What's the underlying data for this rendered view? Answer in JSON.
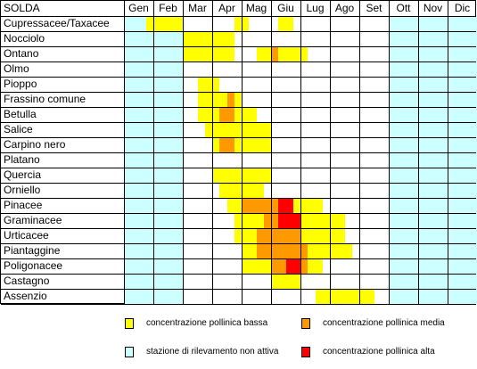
{
  "station": "SOLDA",
  "months": [
    "Gen",
    "Feb",
    "Mar",
    "Apr",
    "Mag",
    "Giu",
    "Lug",
    "Ago",
    "Set",
    "Ott",
    "Nov",
    "Dic"
  ],
  "colors": {
    "inactive": "#ccffff",
    "low": "#ffff00",
    "medium": "#ff9900",
    "high": "#ff0000",
    "empty": "#ffffff"
  },
  "rows": [
    {
      "label": "Cupressacee/Taxacee",
      "levels": "iiiLLLLLiiiiiiiLLiiiiLLiiiiiiiiiiiiiiiiiiiiiiiiii"
    },
    {
      "label": "Nocciolo",
      "levels": "iiiiiiiiLLLLLLLiiiiiiiiiiiiiiiiiiiiiiiiiiiiiiiii"
    },
    {
      "label": "Ontano",
      "levels": "iiiiiiiiLLLLLLLiiiLLMLLLLiiiiiiiiiiiiiiiiiiiiiii"
    },
    {
      "label": "Olmo",
      "levels": "iiiiiiiiiiiiiiiiiiiiiiiiiiiiiiiiiiiiiiiiiiiiiiii"
    },
    {
      "label": "Pioppo",
      "levels": "iiiiiiiiiiLLLiiiiiiiiiiiiiiiiiiiiiiiiiiiiiiiiiii"
    },
    {
      "label": "Frassino comune",
      "levels": "iiiiiiiiiiLLLLMLiiiiiiiiiiiiiiiiiiiiiiiiiiiiiiiii"
    },
    {
      "label": "Betulla",
      "levels": "iiiiiiiiiiLLLMMLLLiiiiiiiiiiiiiiiiiiiiiiiiiiiiiii"
    },
    {
      "label": "Salice",
      "levels": "iiiiiiiiiiiLLLLLLLLLiiiiiiiiiiiiiiiiiiiiiiiiiiiii"
    },
    {
      "label": "Carpino nero",
      "levels": "iiiiiiiiiiiiLMMLLLLLiiiiiiiiiiiiiiiiiiiiiiiiiiiii"
    },
    {
      "label": "Platano",
      "levels": "iiiiiiiiiiiiiiiiiiiiiiiiiiiiiiiiiiiiiiiiiiiiiiii"
    },
    {
      "label": "Quercia",
      "levels": "iiiiiiiiiiiiLLLLLLLLiiiiiiiiiiiiiiiiiiiiiiiiiiiii"
    },
    {
      "label": "Orniello",
      "levels": "iiiiiiiiiiiiiLLLLLLiiiiiiiiiiiiiiiiiiiiiiiiiiiiii"
    },
    {
      "label": "Pinacee",
      "levels": "iiiiiiiiiiiiiiLLMMMMMHHLLLLiiiiiiiiiiiiiiiiiiiiiii"
    },
    {
      "label": "Graminacee",
      "levels": "iiiiiiiiiiiiiiiLLLLMMHHHLLLLLLiiiiiiiiiiiiiiiiiii"
    },
    {
      "label": "Urticacee",
      "levels": "iiiiiiiiiiiiiiiLLLMMMMMMLLLLLLiiiiiiiiiiiiiiiiiii"
    },
    {
      "label": "Piantaggine",
      "levels": "iiiiiiiiiiiiiiiiLLMMMMMMMLLLLLLiiiiiiiiiiiiiiiiii"
    },
    {
      "label": "Poligonacee",
      "levels": "iiiiiiiiiiiiiiiiLLLLMMHHMLLiiiiiiiiiiiiiiiiiiiiiii"
    },
    {
      "label": "Castagno",
      "levels": "iiiiiiiiiiiiiiiiiiiiLLLLiiiiiiiiiiiiiiiiiiiiiiiii"
    },
    {
      "label": "Assenzio",
      "levels": "iiiiiiiiiiiiiiiiiiiiiiiiiiLLLLLLLLiiiiiiiiiiiiiii"
    }
  ],
  "legend": {
    "low": "concentrazione pollinica bassa",
    "medium": "concentrazione pollinica media",
    "inactive": "stazione di rilevamento non attiva",
    "high": "concentrazione pollinica alta"
  }
}
